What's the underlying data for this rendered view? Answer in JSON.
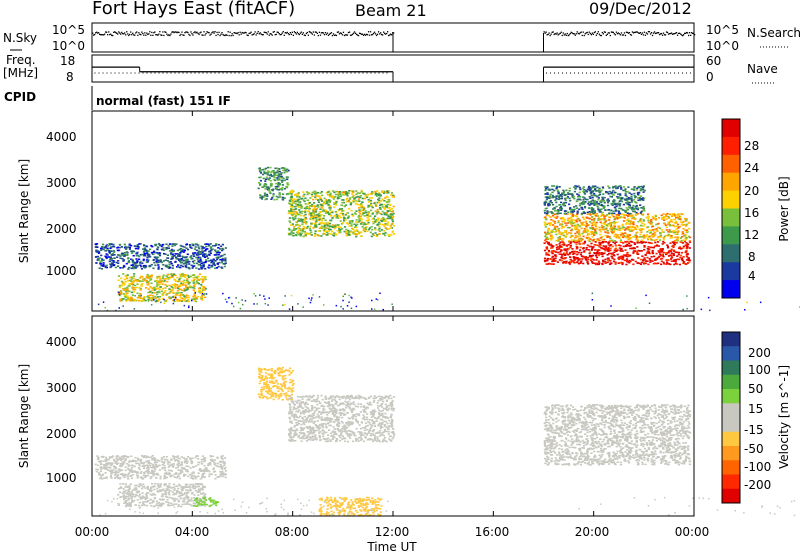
{
  "header": {
    "station": "Fort Hays East (fitACF)",
    "beam": "Beam 21",
    "date": "09/Dec/2012"
  },
  "noise_panel": {
    "left_label": "N.Sky",
    "left_ticks": [
      "10^5",
      "10^0"
    ],
    "right_label": "N.Search",
    "right_ticks": [
      "10^5",
      "10^0"
    ]
  },
  "freq_panel": {
    "left_label_1": "Freq.",
    "left_label_2": "[MHz]",
    "left_ticks": [
      "18",
      "8"
    ],
    "right_label": "Nave",
    "right_ticks": [
      "60",
      "0"
    ]
  },
  "cpid_panel": {
    "left_label": "CPID",
    "program": "normal (fast) 151 IF"
  },
  "x_axis": {
    "label": "Time UT",
    "ticks": [
      "00:00",
      "04:00",
      "08:00",
      "12:00",
      "16:00",
      "20:00",
      "00:00"
    ]
  },
  "power_panel": {
    "ylabel": "Slant Range [km]",
    "yticks": [
      "4000",
      "3000",
      "2000",
      "1000"
    ],
    "colorbar_label": "Power [dB]",
    "colorbar_ticks": [
      "28",
      "24",
      "20",
      "16",
      "12",
      "8",
      "4"
    ],
    "colors": [
      "#0000ee",
      "#1a3aa0",
      "#2e6e6e",
      "#3c9a4a",
      "#78c03c",
      "#ffd000",
      "#ffa500",
      "#ff6000",
      "#ff1e00",
      "#e00000"
    ]
  },
  "velocity_panel": {
    "ylabel": "Slant Range [km]",
    "yticks": [
      "4000",
      "3000",
      "2000",
      "1000"
    ],
    "colorbar_label": "Velocity [m s^-1]",
    "colorbar_ticks": [
      "200",
      "100",
      "50",
      "15",
      "-15",
      "-50",
      "-100",
      "-200"
    ],
    "colors": [
      "#203080",
      "#2a58a8",
      "#2e7a5a",
      "#4caa3c",
      "#7cd23c",
      "#c8c8c0",
      "#c8c8c0",
      "#ffc840",
      "#ff9a1e",
      "#ff6400",
      "#ff2800",
      "#e00000"
    ]
  },
  "chart_data": {
    "type": "heatmap",
    "x_range_hours": [
      0,
      24
    ],
    "y_range_km": [
      180,
      4500
    ],
    "grid": false,
    "data_gap_hours": [
      12,
      18
    ],
    "power_regions": [
      {
        "t0": 0.1,
        "t1": 5.3,
        "r0": 1100,
        "r1": 1650,
        "db": 6
      },
      {
        "t0": 1.0,
        "t1": 4.5,
        "r0": 400,
        "r1": 1000,
        "db": 16
      },
      {
        "t0": 6.6,
        "t1": 7.8,
        "r0": 2600,
        "r1": 3300,
        "db": 10
      },
      {
        "t0": 7.8,
        "t1": 12.0,
        "r0": 1800,
        "r1": 2800,
        "db": 14
      },
      {
        "t0": 18.0,
        "t1": 23.8,
        "r0": 1200,
        "r1": 1700,
        "db": 28
      },
      {
        "t0": 18.0,
        "t1": 23.8,
        "r0": 1700,
        "r1": 2300,
        "db": 18
      },
      {
        "t0": 18.0,
        "t1": 22.0,
        "r0": 2300,
        "r1": 2900,
        "db": 8
      }
    ],
    "velocity_regions": [
      {
        "t0": 0.1,
        "t1": 5.3,
        "r0": 1000,
        "r1": 1500,
        "v": 0
      },
      {
        "t0": 1.0,
        "t1": 4.5,
        "r0": 400,
        "r1": 900,
        "v": 0
      },
      {
        "t0": 4.0,
        "t1": 5.0,
        "r0": 400,
        "r1": 600,
        "v": 40
      },
      {
        "t0": 6.6,
        "t1": 8.0,
        "r0": 2700,
        "r1": 3400,
        "v": -60
      },
      {
        "t0": 7.8,
        "t1": 12.0,
        "r0": 1800,
        "r1": 2800,
        "v": 0
      },
      {
        "t0": 18.0,
        "t1": 23.8,
        "r0": 1300,
        "r1": 2600,
        "v": 0
      },
      {
        "t0": 9.0,
        "t1": 11.5,
        "r0": 200,
        "r1": 600,
        "v": -60
      }
    ],
    "freq_mhz": [
      {
        "t0": 0.0,
        "t1": 1.9,
        "value": 13.5
      },
      {
        "t0": 1.9,
        "t1": 12.0,
        "value": 11.8
      },
      {
        "t0": 18.0,
        "t1": 24.0,
        "value": 13.5
      }
    ]
  }
}
